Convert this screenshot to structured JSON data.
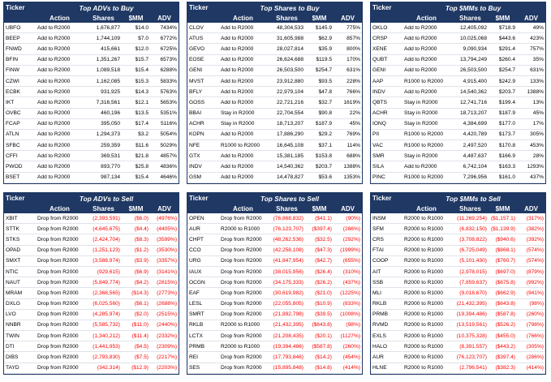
{
  "panels": [
    {
      "id": "top-advs-buy",
      "title": "Top ADVs to Buy",
      "headers": [
        "Ticker",
        "Action",
        "Shares",
        "$MM",
        "ADV"
      ],
      "negative": false,
      "rows": [
        [
          "UBFO",
          "Add to R2000",
          "1,676,877",
          "$14.0",
          "7434%"
        ],
        [
          "BEEP",
          "Add to R2000",
          "1,744,109",
          "$7.0",
          "6772%"
        ],
        [
          "FNWD",
          "Add to R2000",
          "415,661",
          "$12.0",
          "6725%"
        ],
        [
          "BFIN",
          "Add to R2000",
          "1,351,267",
          "$15.7",
          "6573%"
        ],
        [
          "FINW",
          "Add to R2000",
          "1,089,518",
          "$15.4",
          "6288%"
        ],
        [
          "CZWI",
          "Add to R2000",
          "1,162,085",
          "$15.3",
          "5833%"
        ],
        [
          "ECBK",
          "Add to R2000",
          "931,925",
          "$14.3",
          "5763%"
        ],
        [
          "IKT",
          "Add to R2000",
          "7,316,561",
          "$12.1",
          "5653%"
        ],
        [
          "OVBC",
          "Add to R2000",
          "460,196",
          "$13.5",
          "5351%"
        ],
        [
          "FCAP",
          "Add to R2000",
          "395,050",
          "$17.4",
          "5116%"
        ],
        [
          "ATLN",
          "Add to R2000",
          "1,294,373",
          "$3.2",
          "5054%"
        ],
        [
          "SFBC",
          "Add to R2000",
          "259,359",
          "$11.6",
          "5029%"
        ],
        [
          "CFFI",
          "Add to R2000",
          "369,531",
          "$21.8",
          "4857%"
        ],
        [
          "PWOD",
          "Add to R2000",
          "893,770",
          "$25.8",
          "4836%"
        ],
        [
          "BSET",
          "Add to R2000",
          "987,134",
          "$15.4",
          "4646%"
        ]
      ]
    },
    {
      "id": "top-shares-buy",
      "title": "Top Shares to Buy",
      "headers": [
        "Ticker",
        "Action",
        "Shares",
        "$MM",
        "ADV"
      ],
      "negative": false,
      "rows": [
        [
          "CLOV",
          "Add to R2000",
          "48,304,533",
          "$145.9",
          "775%"
        ],
        [
          "ATUS",
          "Add to R2000",
          "31,605,988",
          "$62.9",
          "857%"
        ],
        [
          "GEVO",
          "Add to R2000",
          "28,027,814",
          "$35.9",
          "800%"
        ],
        [
          "EOSE",
          "Add to R2000",
          "26,624,688",
          "$119.5",
          "170%"
        ],
        [
          "GENI",
          "Add to R2000",
          "26,503,500",
          "$254.7",
          "631%"
        ],
        [
          "MVST",
          "Add to R2000",
          "23,912,880",
          "$93.5",
          "228%"
        ],
        [
          "BFLY",
          "Add to R2000",
          "22,979,104",
          "$47.8",
          "766%"
        ],
        [
          "GOSS",
          "Add to R2000",
          "22,721,216",
          "$32.7",
          "1619%"
        ],
        [
          "BBAI",
          "Stay in R2000",
          "22,704,554",
          "$90.8",
          "22%"
        ],
        [
          "ACHR",
          "Stay in R2000",
          "18,713,207",
          "$187.9",
          "45%"
        ],
        [
          "KOPN",
          "Add to R2000",
          "17,886,290",
          "$29.2",
          "769%"
        ],
        [
          "NFE",
          "R1000 to R2000",
          "16,645,108",
          "$37.1",
          "114%"
        ],
        [
          "GTX",
          "Add to R2000",
          "15,381,185",
          "$153.8",
          "688%"
        ],
        [
          "INDV",
          "Add to R2000",
          "14,540,362",
          "$203.7",
          "1388%"
        ],
        [
          "GSM",
          "Add to R2000",
          "14,478,827",
          "$53.6",
          "1353%"
        ]
      ]
    },
    {
      "id": "top-mms-buy",
      "title": "Top $MMs to Buy",
      "headers": [
        "Ticker",
        "Action",
        "Shares",
        "$MM",
        "ADV"
      ],
      "negative": false,
      "rows": [
        [
          "OKLO",
          "Add to R2000",
          "12,405,092",
          "$718.9",
          "49%"
        ],
        [
          "CRSP",
          "Add to R2000",
          "10,025,068",
          "$443.6",
          "423%"
        ],
        [
          "XENE",
          "Add to R2000",
          "9,090,934",
          "$291.4",
          "757%"
        ],
        [
          "QUBT",
          "Add to R2000",
          "13,794,249",
          "$260.4",
          "35%"
        ],
        [
          "GENI",
          "Add to R2000",
          "26,503,500",
          "$254.7",
          "631%"
        ],
        [
          "AAP",
          "R1000 to R2000",
          "4,915,400",
          "$242.9",
          "133%"
        ],
        [
          "INDV",
          "Add to R2000",
          "14,540,362",
          "$203.7",
          "1388%"
        ],
        [
          "QBTS",
          "Stay in R2000",
          "12,741,716",
          "$199.4",
          "13%"
        ],
        [
          "ACHR",
          "Stay in R2000",
          "18,713,207",
          "$187.9",
          "45%"
        ],
        [
          "IONQ",
          "Stay in R2000",
          "4,384,699",
          "$177.0",
          "17%"
        ],
        [
          "PII",
          "R1000 to R2000",
          "4,420,789",
          "$173.7",
          "305%"
        ],
        [
          "VAC",
          "R1000 to R2000",
          "2,497,520",
          "$170.8",
          "453%"
        ],
        [
          "SMR",
          "Stay in R2000",
          "4,487,637",
          "$166.9",
          "28%"
        ],
        [
          "SILA",
          "Add to R2000",
          "6,742,104",
          "$163.3",
          "1293%"
        ],
        [
          "PINC",
          "R1000 to R2000",
          "7,296,956",
          "$161.0",
          "437%"
        ]
      ]
    },
    {
      "id": "top-advs-sell",
      "title": "Top ADVs to Sell",
      "headers": [
        "Ticker",
        "Action",
        "Shares",
        "$MM",
        "ADV"
      ],
      "negative": true,
      "rows": [
        [
          "XBIT",
          "Drop from R2000",
          "(2,393,591)",
          "($6.0)",
          "(4976%)"
        ],
        [
          "STTK",
          "Drop from R2000",
          "(4,645,675)",
          "($4.4)",
          "(4405%)"
        ],
        [
          "STKS",
          "Drop from R2000",
          "(2,424,704)",
          "($8.3)",
          "(3599%)"
        ],
        [
          "OPAD",
          "Drop from R2000",
          "(1,251,123)",
          "($1.2)",
          "(3530%)"
        ],
        [
          "SMXT",
          "Drop from R2000",
          "(3,588,974)",
          "($3.9)",
          "(3357%)"
        ],
        [
          "NTIC",
          "Drop from R2000",
          "(929,615)",
          "($6.9)",
          "(3141%)"
        ],
        [
          "NAUT",
          "Drop from R2000",
          "(5,849,774)",
          "($4.2)",
          "(2815%)"
        ],
        [
          "MRAM",
          "Drop from R2000",
          "(2,368,565)",
          "($14.3)",
          "(2773%)"
        ],
        [
          "DXLG",
          "Drop from R2000",
          "(6,025,560)",
          "($6.1)",
          "(2688%)"
        ],
        [
          "LVO",
          "Drop from R2000",
          "(4,285,974)",
          "($2.0)",
          "(2515%)"
        ],
        [
          "NNBR",
          "Drop from R2000",
          "(5,585,732)",
          "($11.0)",
          "(2440%)"
        ],
        [
          "TWIN",
          "Drop from R2000",
          "(1,340,212)",
          "($11.4)",
          "(2332%)"
        ],
        [
          "DTI",
          "Drop from R2000",
          "(1,441,953)",
          "($4.5)",
          "(2309%)"
        ],
        [
          "DIBS",
          "Drop from R2000",
          "(2,793,830)",
          "($7.5)",
          "(2217%)"
        ],
        [
          "TAYD",
          "Drop from R2000",
          "(342,314)",
          "($12.9)",
          "(2203%)"
        ]
      ]
    },
    {
      "id": "top-shares-sell",
      "title": "Top Shares to Sell",
      "headers": [
        "Ticker",
        "Action",
        "Shares",
        "$MM",
        "ADV"
      ],
      "negative": true,
      "rows": [
        [
          "OPEN",
          "Drop from R2000",
          "(76,868,832)",
          "($41.1)",
          "(90%)"
        ],
        [
          "AUR",
          "R2000 to R1000",
          "(76,123,707)",
          "($397.4)",
          "(286%)"
        ],
        [
          "CHPT",
          "Drop from R2000",
          "(48,262,536)",
          "($32.5)",
          "(292%)"
        ],
        [
          "CCO",
          "Drop from R2000",
          "(42,258,108)",
          "($47.3)",
          "(1999%)"
        ],
        [
          "URG",
          "Drop from R2000",
          "(41,847,954)",
          "($42.7)",
          "(655%)"
        ],
        [
          "IAUX",
          "Drop from R2000",
          "(38,015,956)",
          "($26.4)",
          "(310%)"
        ],
        [
          "OCGN",
          "Drop from R2000",
          "(34,175,333)",
          "($26.2)",
          "(437%)"
        ],
        [
          "EAF",
          "Drop from R2000",
          "(30,619,982)",
          "($21.0)",
          "(1225%)"
        ],
        [
          "LESL",
          "Drop from R2000",
          "(22,055,805)",
          "($10.9)",
          "(833%)"
        ],
        [
          "SMRT",
          "Drop from R2000",
          "(21,892,798)",
          "($39.5)",
          "(1008%)"
        ],
        [
          "RKLB",
          "R2000 to R1000",
          "(21,432,395)",
          "($643.8)",
          "(98%)"
        ],
        [
          "LCTX",
          "Drop from R2000",
          "(21,208,435)",
          "($20.1)",
          "(1127%)"
        ],
        [
          "PRMB",
          "R2000 to R1000",
          "(19,394,486)",
          "($587.8)",
          "(260%)"
        ],
        [
          "REI",
          "Drop from R2000",
          "(17,793,846)",
          "($14.2)",
          "(454%)"
        ],
        [
          "SES",
          "Drop from R2000",
          "(15,895,848)",
          "($14.8)",
          "(414%)"
        ]
      ]
    },
    {
      "id": "top-mms-sell",
      "title": "Top $MMs to Sell",
      "headers": [
        "Ticker",
        "Action",
        "Shares",
        "$MM",
        "ADV"
      ],
      "negative": true,
      "rows": [
        [
          "INSM",
          "R2000 to R1000",
          "(11,269,254)",
          "($1,157.1)",
          "(317%)"
        ],
        [
          "SFM",
          "R2000 to R1000",
          "(6,832,150)",
          "($1,139.9)",
          "(382%)"
        ],
        [
          "CRS",
          "R2000 to R1000",
          "(3,708,822)",
          "($940.6)",
          "(392%)"
        ],
        [
          "FTAI",
          "R2000 to R1000",
          "(6,725,049)",
          "($868.1)",
          "(574%)"
        ],
        [
          "COOP",
          "R2000 to R1000",
          "(5,101,430)",
          "($760.7)",
          "(574%)"
        ],
        [
          "AIT",
          "R2000 to R1000",
          "(2,978,015)",
          "($697.0)",
          "(879%)"
        ],
        [
          "SSB",
          "R2000 to R1000",
          "(7,859,637)",
          "($675.8)",
          "(992%)"
        ],
        [
          "MLI",
          "R2000 to R1000",
          "(9,018,670)",
          "($662.9)",
          "(941%)"
        ],
        [
          "RKLB",
          "R2000 to R1000",
          "(21,432,395)",
          "($643.8)",
          "(98%)"
        ],
        [
          "PRMB",
          "R2000 to R1000",
          "(19,394,486)",
          "($587.8)",
          "(260%)"
        ],
        [
          "RVMD",
          "R2000 to R1000",
          "(13,519,561)",
          "($526.2)",
          "(798%)"
        ],
        [
          "EXLS",
          "R2000 to R1000",
          "(10,375,328)",
          "($455.0)",
          "(766%)"
        ],
        [
          "HALO",
          "R2000 to R1000",
          "(8,391,557)",
          "($443.2)",
          "(305%)"
        ],
        [
          "AUR",
          "R2000 to R1000",
          "(76,123,707)",
          "($397.4)",
          "(286%)"
        ],
        [
          "HLNE",
          "R2000 to R1000",
          "(2,796,541)",
          "($382.3)",
          "(414%)"
        ]
      ]
    }
  ]
}
